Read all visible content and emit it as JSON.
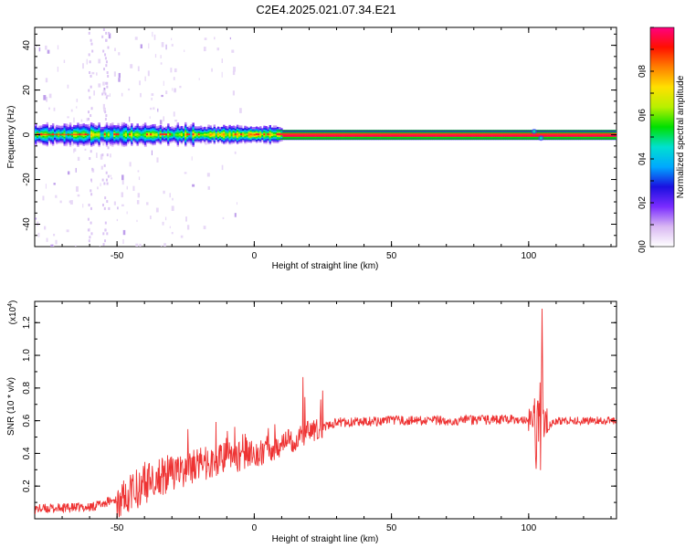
{
  "title": "C2E4.2025.021.07.34.E21",
  "chart_data": [
    {
      "type": "heatmap",
      "xlabel": "Height of straight line (km)",
      "ylabel": "Frequency (Hz)",
      "xlim": [
        -80,
        132
      ],
      "ylim": [
        -50,
        48
      ],
      "xticks": [
        "-50",
        "0",
        "50",
        "100"
      ],
      "xtick_values": [
        -50,
        0,
        50,
        100
      ],
      "yticks": [
        "-40",
        "-20",
        "0",
        "20",
        "40"
      ],
      "ytick_values": [
        -40,
        -20,
        0,
        20,
        40
      ],
      "colorbar": {
        "label": "Normalized spectral amplitude",
        "range": [
          0,
          1
        ],
        "ticks": [
          "0.0",
          "0.2",
          "0.4",
          "0.6",
          "0.8"
        ],
        "tick_values": [
          0.0,
          0.2,
          0.4,
          0.6,
          0.8
        ],
        "colormap": [
          "#ffffff",
          "#d9b8f2",
          "#7a2cff",
          "#1a10e0",
          "#00a8ff",
          "#00e0d0",
          "#00e000",
          "#b8f000",
          "#ffe000",
          "#ff8000",
          "#ff1000",
          "#ff0080"
        ]
      },
      "features": {
        "main_line_frequency_hz": 0,
        "band_halfwidth_hz": 2
      }
    },
    {
      "type": "line",
      "xlabel": "Height of straight line (km)",
      "ylabel": "SNR (10 * v/v)",
      "scale_label": "(x10^4)",
      "xlim": [
        -80,
        132
      ],
      "ylim": [
        0,
        1.33
      ],
      "xticks": [
        "-50",
        "0",
        "50",
        "100"
      ],
      "xtick_values": [
        -50,
        0,
        50,
        100
      ],
      "yticks": [
        "0.2",
        "0.4",
        "0.6",
        "0.8",
        "1.0",
        "1.2"
      ],
      "ytick_values": [
        0.2,
        0.4,
        0.6,
        0.8,
        1.0,
        1.2
      ],
      "color": "#ee3333",
      "series_envelope": {
        "x": [
          -80,
          -60,
          -50,
          -40,
          -30,
          -20,
          -10,
          0,
          10,
          20,
          30,
          50,
          70,
          100,
          102,
          104,
          105,
          106,
          110,
          132
        ],
        "y": [
          0.06,
          0.07,
          0.12,
          0.22,
          0.28,
          0.33,
          0.37,
          0.4,
          0.45,
          0.53,
          0.59,
          0.6,
          0.6,
          0.61,
          0.62,
          0.3,
          1.3,
          0.55,
          0.6,
          0.6
        ]
      }
    }
  ]
}
